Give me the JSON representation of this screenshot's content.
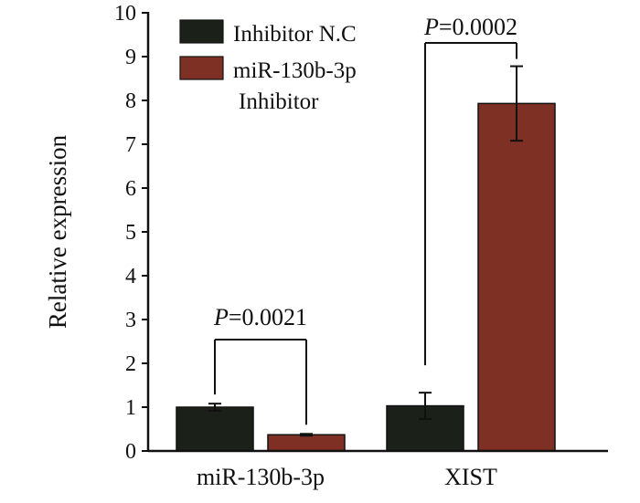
{
  "chart_data": {
    "type": "bar",
    "title": "",
    "xlabel": "",
    "ylabel": "Relative expression",
    "ylim": [
      0,
      10
    ],
    "yticks": [
      0,
      1,
      2,
      3,
      4,
      5,
      6,
      7,
      8,
      9,
      10
    ],
    "categories": [
      "miR-130b-3p",
      "XIST"
    ],
    "series": [
      {
        "name": "Inhibitor N.C",
        "color": "#1b2119",
        "values": [
          1.0,
          1.03
        ],
        "errors": [
          0.08,
          0.3
        ]
      },
      {
        "name": "miR-130b-3p Inhibitor",
        "color": "#7e3025",
        "values": [
          0.37,
          7.93
        ],
        "errors": [
          0.02,
          0.85
        ]
      }
    ],
    "legend": {
      "position": "top-left",
      "entries": [
        {
          "lines": [
            "Inhibitor N.C"
          ]
        },
        {
          "lines": [
            "miR-130b-3p",
            "Inhibitor"
          ]
        }
      ]
    },
    "annotations": [
      {
        "category": "miR-130b-3p",
        "prefix": "P",
        "text": "=0.0021"
      },
      {
        "category": "XIST",
        "prefix": "P",
        "text": "=0.0002"
      }
    ]
  }
}
